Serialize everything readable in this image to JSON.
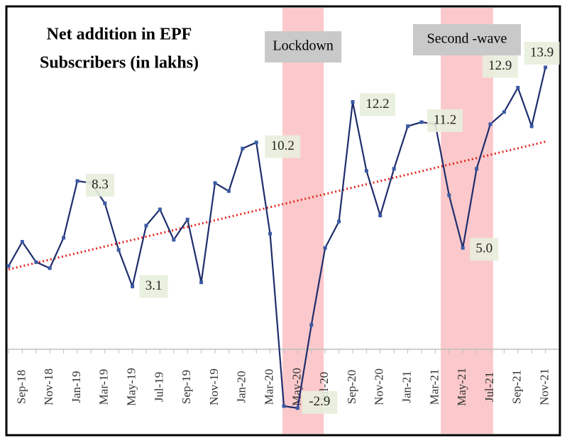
{
  "chart_data": {
    "type": "line",
    "title": [
      "Net addition in EPF",
      "Subscribers (in lakhs)"
    ],
    "categories": [
      null,
      "Sep-18",
      null,
      "Nov-18",
      null,
      "Jan-19",
      null,
      "Mar-19",
      null,
      "May-19",
      null,
      "Jul-19",
      null,
      "Sep-19",
      null,
      "Nov-19",
      null,
      "Jan-20",
      null,
      "Mar-20",
      null,
      "May-20",
      null,
      "Jul-20",
      null,
      "Sep-20",
      null,
      "Nov-20",
      null,
      "Jan-21",
      null,
      "Mar-21",
      null,
      "May-21",
      null,
      "Jul-21",
      null,
      "Sep-21",
      null,
      "Nov-21"
    ],
    "series": [
      {
        "color": "#1f2d6b",
        "values": [
          4.1,
          5.3,
          4.3,
          4.0,
          5.5,
          8.3,
          8.2,
          7.2,
          4.9,
          3.1,
          6.1,
          6.9,
          5.4,
          6.4,
          3.3,
          8.2,
          7.8,
          9.9,
          10.2,
          5.7,
          -2.8,
          -2.9,
          1.2,
          5.0,
          6.3,
          12.2,
          8.8,
          6.6,
          8.9,
          11.0,
          11.2,
          11.1,
          7.6,
          5.0,
          8.9,
          11.1,
          11.7,
          12.9,
          11.0,
          13.9
        ],
        "value_labels": [
          null,
          null,
          null,
          null,
          null,
          "8.3",
          null,
          null,
          null,
          "3.1",
          null,
          null,
          null,
          null,
          null,
          null,
          null,
          null,
          "10.2",
          null,
          null,
          "-2.9",
          null,
          null,
          null,
          "12.2",
          null,
          null,
          null,
          null,
          "11.2",
          null,
          null,
          "5.0",
          null,
          null,
          null,
          "12.9",
          null,
          "13.9"
        ]
      }
    ],
    "ylim": [
      -3.5,
      15
    ],
    "trendline": {
      "color": "#e3261f"
    },
    "shaded_periods": [
      {
        "label": "Lockdown",
        "span": [
          19.9,
          22.9
        ],
        "color": "#fbc9cb"
      },
      {
        "label": "Second -wave",
        "span": [
          31.4,
          35.2
        ],
        "color": "#fbc9cb"
      }
    ]
  }
}
